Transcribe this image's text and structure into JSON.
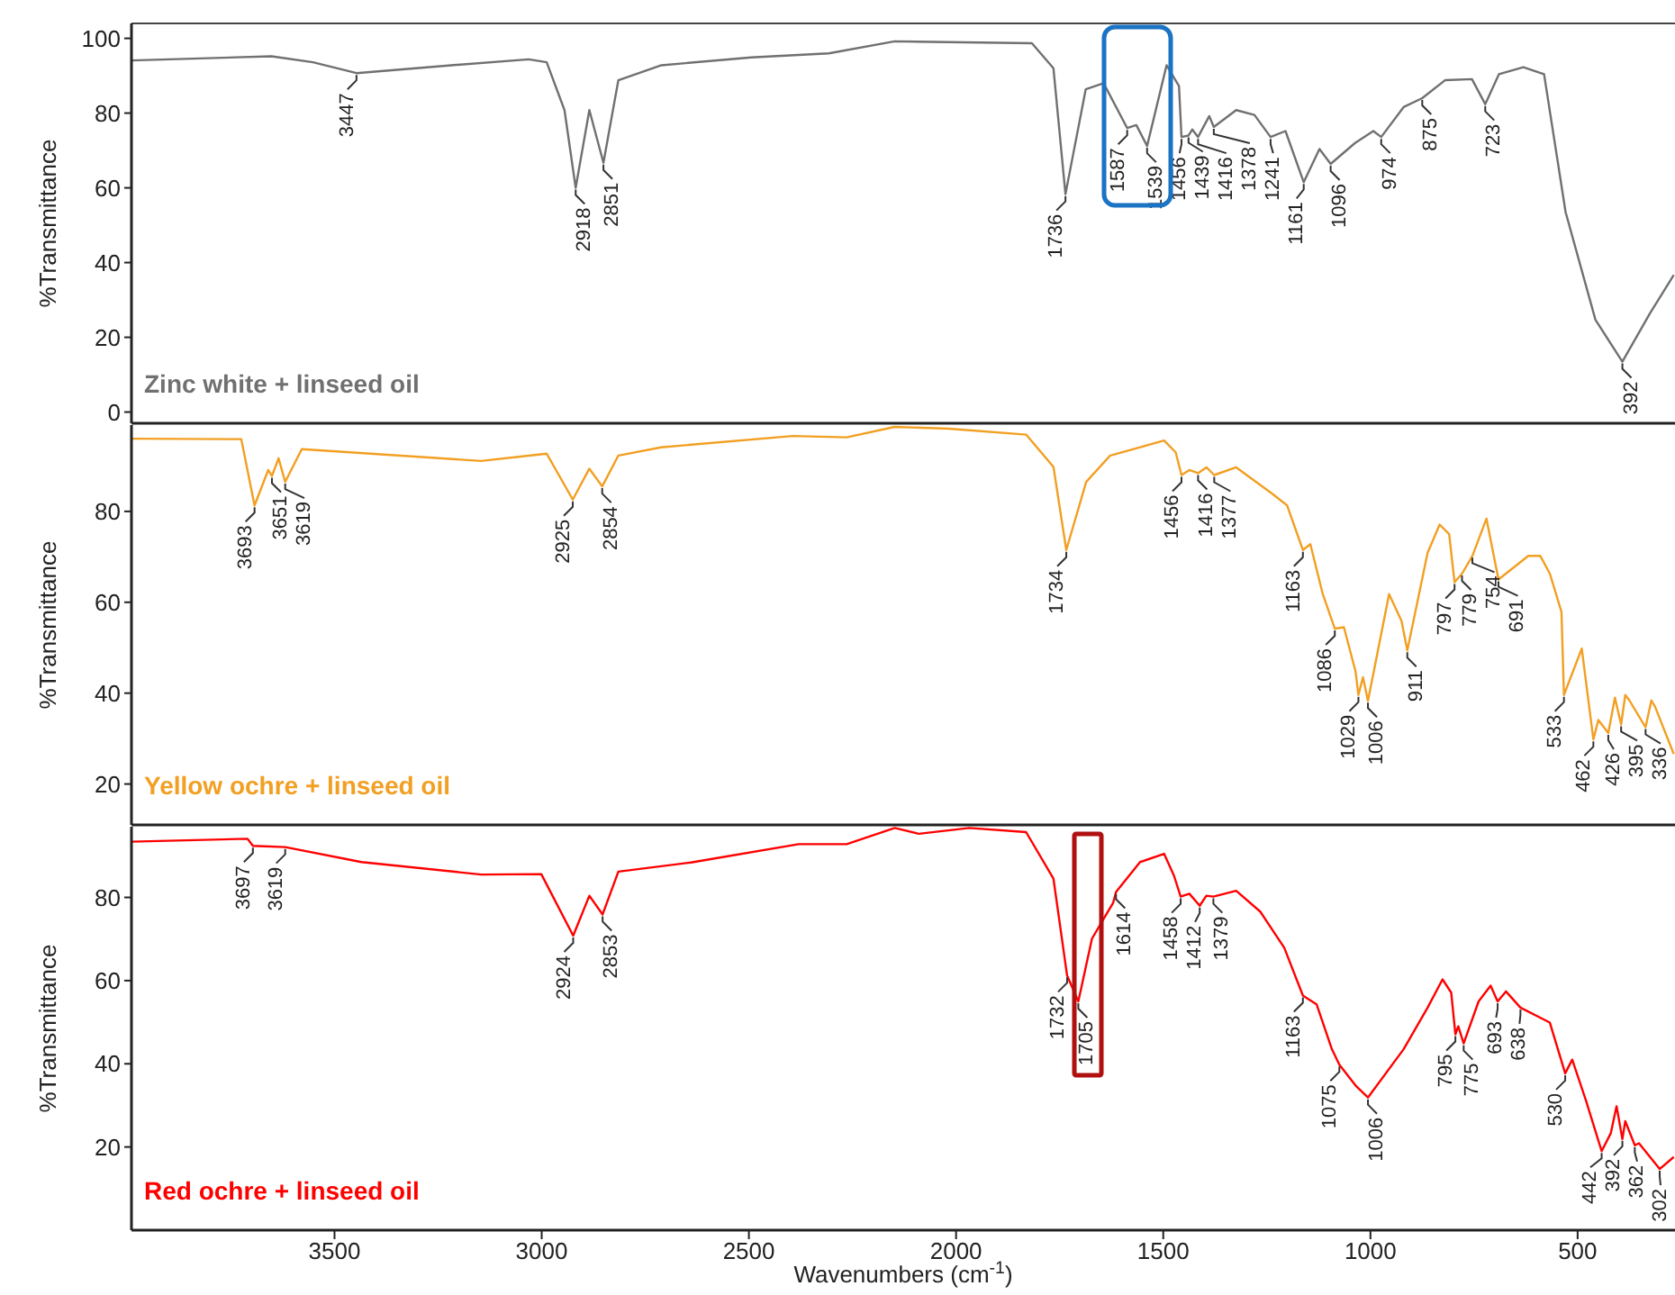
{
  "chart_data": [
    {
      "type": "line",
      "ylabel": "%Transmittance",
      "xlim": [
        3990,
        265
      ],
      "ylim": [
        -3,
        104
      ],
      "yticks": [
        0,
        20,
        40,
        60,
        80,
        100
      ],
      "tick_labels": "y",
      "x": [
        3990,
        3652,
        3552,
        3447,
        3218,
        3031,
        2988,
        2945,
        2918,
        2885,
        2851,
        2815,
        2711,
        2494,
        2307,
        2148,
        1817,
        1765,
        1736,
        1687,
        1644,
        1587,
        1565,
        1539,
        1492,
        1462,
        1456,
        1439,
        1430,
        1416,
        1389,
        1378,
        1324,
        1280,
        1241,
        1205,
        1161,
        1123,
        1096,
        1037,
        993,
        974,
        920,
        875,
        820,
        755,
        723,
        690,
        631,
        581,
        529,
        457,
        392,
        326,
        268
      ],
      "series": [
        {
          "name": "Zinc white + linseed oil",
          "color": "#707070",
          "values": [
            94.1,
            95.2,
            93.6,
            90.7,
            92.8,
            94.4,
            93.6,
            80.8,
            60.0,
            80.8,
            66.7,
            88.8,
            92.8,
            94.9,
            96.0,
            99.2,
            98.7,
            92,
            58.3,
            86.4,
            88,
            76,
            76.8,
            71.2,
            92.8,
            87.2,
            73.6,
            74,
            75.6,
            73.6,
            79.2,
            76.3,
            80.8,
            79.5,
            73.6,
            75.2,
            61.5,
            70.4,
            66.4,
            72,
            75.2,
            73.6,
            81.6,
            84,
            88.8,
            89.1,
            82.4,
            90.4,
            92.3,
            90.4,
            53.5,
            24.7,
            13.5,
            26.3,
            36.7
          ]
        }
      ],
      "annotations": [
        {
          "text": "3447",
          "x": 3447,
          "y": 90.7
        },
        {
          "text": "2918",
          "x": 2918,
          "y": 60.0
        },
        {
          "text": "2851",
          "x": 2851,
          "y": 66.7
        },
        {
          "text": "1736",
          "x": 1736,
          "y": 58.3
        },
        {
          "text": "1587",
          "x": 1587,
          "y": 76
        },
        {
          "text": "1539",
          "x": 1539,
          "y": 71.2
        },
        {
          "text": "1456",
          "x": 1456,
          "y": 73.6
        },
        {
          "text": "1439",
          "x": 1439,
          "y": 74
        },
        {
          "text": "1416",
          "x": 1416,
          "y": 73.6
        },
        {
          "text": "1378",
          "x": 1378,
          "y": 76.3
        },
        {
          "text": "1241",
          "x": 1241,
          "y": 73.6
        },
        {
          "text": "1161",
          "x": 1161,
          "y": 61.5
        },
        {
          "text": "1096",
          "x": 1096,
          "y": 66.4
        },
        {
          "text": "974",
          "x": 974,
          "y": 73.6
        },
        {
          "text": "875",
          "x": 875,
          "y": 84
        },
        {
          "text": "723",
          "x": 723,
          "y": 82.4
        },
        {
          "text": "392",
          "x": 392,
          "y": 13.5
        }
      ]
    },
    {
      "type": "line",
      "ylabel": "%Transmittance",
      "xlim": [
        3990,
        265
      ],
      "ylim": [
        11,
        99
      ],
      "yticks": [
        20,
        40,
        60,
        80
      ],
      "tick_labels": "y",
      "x": [
        3990,
        3725,
        3693,
        3660,
        3651,
        3635,
        3619,
        3579,
        3146,
        2988,
        2925,
        2885,
        2854,
        2815,
        2712,
        2394,
        2264,
        2148,
        2018,
        1831,
        1765,
        1734,
        1686,
        1628,
        1498,
        1470,
        1456,
        1437,
        1416,
        1396,
        1377,
        1324,
        1237,
        1201,
        1163,
        1145,
        1115,
        1086,
        1064,
        1036,
        1029,
        1018,
        1006,
        955,
        925,
        911,
        862,
        833,
        810,
        797,
        779,
        754,
        720,
        691,
        619,
        590,
        567,
        539,
        533,
        490,
        462,
        450,
        426,
        410,
        395,
        385,
        375,
        336,
        322,
        313,
        268
      ],
      "series": [
        {
          "name": "Yellow ochre + linseed oil",
          "color": "#f29f22",
          "values": [
            96.0,
            95.9,
            81.3,
            89.1,
            87.8,
            91.7,
            86.5,
            93.7,
            91.1,
            92.7,
            82.6,
            89.4,
            85.5,
            92.3,
            94.1,
            96.6,
            96.3,
            98.6,
            98.2,
            96.9,
            89.8,
            71.5,
            86.5,
            92.3,
            95.6,
            93,
            88.0,
            89.1,
            88.4,
            89.7,
            88.0,
            89.7,
            83.9,
            81.3,
            71.5,
            72.8,
            61.8,
            54.2,
            54.5,
            44.8,
            39.6,
            43.5,
            38.3,
            61.8,
            55.9,
            49.4,
            70.9,
            77.1,
            75,
            64.4,
            66.3,
            70.2,
            78.4,
            65,
            70.2,
            70.2,
            66.3,
            57.9,
            39.6,
            49.8,
            29.8,
            34.1,
            31.2,
            39.0,
            33.1,
            39.6,
            38.4,
            32.5,
            38.4,
            37,
            26.6
          ]
        }
      ],
      "annotations": [
        {
          "text": "3693",
          "x": 3693,
          "y": 81.3
        },
        {
          "text": "3651",
          "x": 3651,
          "y": 87.8
        },
        {
          "text": "3619",
          "x": 3619,
          "y": 86.5
        },
        {
          "text": "2925",
          "x": 2925,
          "y": 82.6
        },
        {
          "text": "2854",
          "x": 2854,
          "y": 85.5
        },
        {
          "text": "1734",
          "x": 1734,
          "y": 71.5
        },
        {
          "text": "1456",
          "x": 1456,
          "y": 88.0
        },
        {
          "text": "1416",
          "x": 1416,
          "y": 88.4
        },
        {
          "text": "1377",
          "x": 1377,
          "y": 88.0
        },
        {
          "text": "1163",
          "x": 1163,
          "y": 71.5
        },
        {
          "text": "1086",
          "x": 1086,
          "y": 54.2
        },
        {
          "text": "1029",
          "x": 1029,
          "y": 39.6
        },
        {
          "text": "1006",
          "x": 1006,
          "y": 38.3
        },
        {
          "text": "911",
          "x": 911,
          "y": 49.4
        },
        {
          "text": "797",
          "x": 797,
          "y": 64.4
        },
        {
          "text": "779",
          "x": 779,
          "y": 66.3
        },
        {
          "text": "754",
          "x": 754,
          "y": 70.2
        },
        {
          "text": "691",
          "x": 691,
          "y": 65
        },
        {
          "text": "533",
          "x": 533,
          "y": 39.6
        },
        {
          "text": "462",
          "x": 462,
          "y": 29.8
        },
        {
          "text": "426",
          "x": 426,
          "y": 31.2
        },
        {
          "text": "395",
          "x": 395,
          "y": 33.1
        },
        {
          "text": "336",
          "x": 336,
          "y": 32.5
        }
      ]
    },
    {
      "type": "line",
      "ylabel": "%Transmittance",
      "xlabel": "Wavenumbers (cm$^{-1}$)",
      "xlim": [
        3990,
        265
      ],
      "xticks": [
        3500,
        3000,
        2500,
        2000,
        1500,
        1000,
        500
      ],
      "ylim": [
        0,
        97
      ],
      "yticks": [
        20,
        40,
        60,
        80
      ],
      "x": [
        3990,
        3710,
        3697,
        3619,
        3435,
        3146,
        3001,
        2924,
        2885,
        2853,
        2815,
        2640,
        2380,
        2264,
        2148,
        2090,
        1968,
        1831,
        1765,
        1732,
        1705,
        1672,
        1621,
        1614,
        1556,
        1498,
        1474,
        1458,
        1437,
        1412,
        1396,
        1379,
        1324,
        1266,
        1208,
        1163,
        1130,
        1093,
        1075,
        1036,
        1006,
        920,
        862,
        826,
        805,
        795,
        788,
        775,
        739,
        710,
        693,
        673,
        638,
        567,
        530,
        513,
        480,
        442,
        420,
        406,
        392,
        385,
        362,
        352,
        302,
        268
      ],
      "series": [
        {
          "name": "Red ochre + linseed oil",
          "color": "#ff0000",
          "values": [
            93.4,
            94.1,
            92.4,
            92.1,
            88.5,
            85.5,
            85.6,
            70.8,
            80.4,
            75.9,
            86.2,
            88.4,
            92.8,
            92.8,
            96.7,
            95.3,
            96.7,
            95.7,
            84.5,
            61.2,
            55.0,
            70.1,
            78.7,
            81.3,
            88.5,
            90.5,
            85.2,
            80.2,
            80.9,
            78.0,
            80.4,
            80.2,
            81.6,
            76.6,
            67.9,
            56.4,
            54.3,
            43.5,
            39.8,
            34.8,
            31.9,
            43.5,
            53.5,
            60.3,
            57.1,
            47.1,
            49,
            44.9,
            55,
            58.8,
            55,
            57.4,
            53.5,
            49.9,
            37.7,
            41,
            31.2,
            19.0,
            23.3,
            29.8,
            21.9,
            26.2,
            20.4,
            20.9,
            14.7,
            17.6
          ]
        }
      ],
      "annotations": [
        {
          "text": "3697",
          "x": 3697,
          "y": 92.4
        },
        {
          "text": "3619",
          "x": 3619,
          "y": 92.1
        },
        {
          "text": "2924",
          "x": 2924,
          "y": 70.8
        },
        {
          "text": "2853",
          "x": 2853,
          "y": 75.9
        },
        {
          "text": "1732",
          "x": 1732,
          "y": 61.2
        },
        {
          "text": "1705",
          "x": 1705,
          "y": 55.0
        },
        {
          "text": "1614",
          "x": 1614,
          "y": 81.3
        },
        {
          "text": "1458",
          "x": 1458,
          "y": 80.2
        },
        {
          "text": "1412",
          "x": 1412,
          "y": 78.0
        },
        {
          "text": "1379",
          "x": 1379,
          "y": 80.2
        },
        {
          "text": "1163",
          "x": 1163,
          "y": 56.4
        },
        {
          "text": "1075",
          "x": 1075,
          "y": 39.8
        },
        {
          "text": "1006",
          "x": 1006,
          "y": 31.9
        },
        {
          "text": "795",
          "x": 795,
          "y": 47.1
        },
        {
          "text": "775",
          "x": 775,
          "y": 44.9
        },
        {
          "text": "693",
          "x": 693,
          "y": 55
        },
        {
          "text": "638",
          "x": 638,
          "y": 53.5
        },
        {
          "text": "530",
          "x": 530,
          "y": 37.7
        },
        {
          "text": "442",
          "x": 442,
          "y": 19.0
        },
        {
          "text": "392",
          "x": 392,
          "y": 21.9
        },
        {
          "text": "362",
          "x": 362,
          "y": 20.4
        },
        {
          "text": "302",
          "x": 302,
          "y": 14.7
        }
      ]
    }
  ]
}
